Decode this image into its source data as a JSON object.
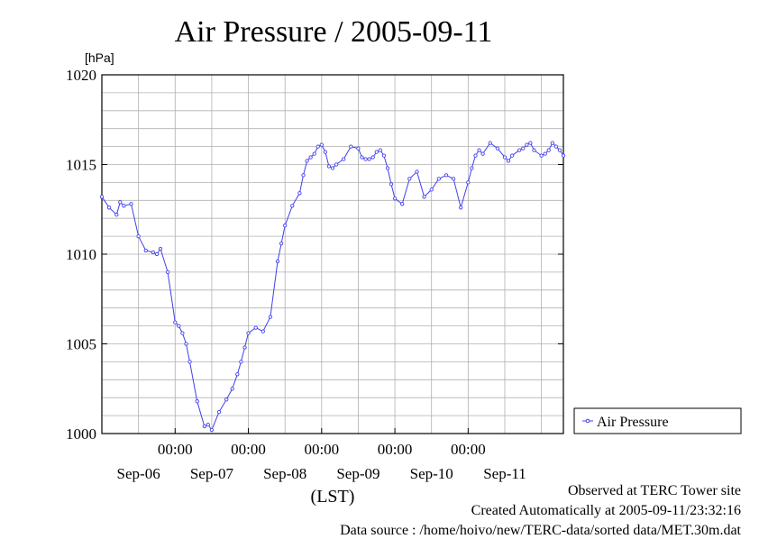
{
  "chart_data": {
    "type": "line",
    "title": "Air Pressure / 2005-09-11",
    "ylabel": "[hPa]",
    "xlabel": "(LST)",
    "ylim": [
      1000,
      1020
    ],
    "yticks": [
      "1000",
      "1005",
      "1010",
      "1015",
      "1020"
    ],
    "xlim_days": [
      0,
      6.3
    ],
    "x_time_ticks": [
      "00:00",
      "00:00",
      "00:00",
      "00:00",
      "00:00"
    ],
    "x_date_ticks": [
      "Sep-06",
      "Sep-07",
      "Sep-08",
      "Sep-09",
      "Sep-10",
      "Sep-11"
    ],
    "grid": true,
    "legend_position": "right",
    "series": [
      {
        "name": "Air Pressure",
        "color": "#4040ee",
        "x": [
          0.0,
          0.1,
          0.2,
          0.25,
          0.3,
          0.4,
          0.5,
          0.6,
          0.7,
          0.75,
          0.8,
          0.9,
          1.0,
          1.05,
          1.1,
          1.15,
          1.2,
          1.3,
          1.4,
          1.45,
          1.5,
          1.6,
          1.7,
          1.78,
          1.85,
          1.9,
          1.95,
          2.0,
          2.1,
          2.2,
          2.3,
          2.4,
          2.45,
          2.5,
          2.6,
          2.7,
          2.75,
          2.8,
          2.85,
          2.9,
          2.95,
          3.0,
          3.05,
          3.1,
          3.15,
          3.2,
          3.3,
          3.4,
          3.5,
          3.55,
          3.6,
          3.65,
          3.7,
          3.75,
          3.8,
          3.85,
          3.9,
          3.95,
          4.0,
          4.1,
          4.2,
          4.3,
          4.4,
          4.5,
          4.6,
          4.7,
          4.8,
          4.9,
          5.0,
          5.05,
          5.1,
          5.15,
          5.2,
          5.3,
          5.4,
          5.5,
          5.55,
          5.6,
          5.7,
          5.75,
          5.8,
          5.85,
          5.9,
          6.0,
          6.05,
          6.1,
          6.15,
          6.2,
          6.25,
          6.3
        ],
        "values": [
          1013.2,
          1012.6,
          1012.2,
          1012.9,
          1012.7,
          1012.8,
          1011.0,
          1010.2,
          1010.1,
          1010.0,
          1010.3,
          1009.0,
          1006.2,
          1006.0,
          1005.6,
          1005.0,
          1004.0,
          1001.8,
          1000.4,
          1000.5,
          1000.2,
          1001.2,
          1001.9,
          1002.5,
          1003.3,
          1004.0,
          1004.8,
          1005.6,
          1005.9,
          1005.7,
          1006.5,
          1009.6,
          1010.6,
          1011.6,
          1012.7,
          1013.4,
          1014.4,
          1015.2,
          1015.4,
          1015.6,
          1016.0,
          1016.1,
          1015.7,
          1014.9,
          1014.8,
          1015.0,
          1015.3,
          1016.0,
          1015.9,
          1015.4,
          1015.3,
          1015.3,
          1015.4,
          1015.7,
          1015.8,
          1015.5,
          1014.8,
          1013.9,
          1013.1,
          1012.8,
          1014.2,
          1014.6,
          1013.2,
          1013.6,
          1014.2,
          1014.4,
          1014.2,
          1012.6,
          1014.0,
          1014.8,
          1015.5,
          1015.8,
          1015.6,
          1016.2,
          1015.9,
          1015.4,
          1015.2,
          1015.5,
          1015.8,
          1015.9,
          1016.1,
          1016.2,
          1015.8,
          1015.5,
          1015.6,
          1015.8,
          1016.2,
          1016.0,
          1015.8,
          1015.5
        ]
      }
    ]
  },
  "footer": {
    "observed": "Observed at TERC Tower site",
    "created": "Created Automatically at 2005-09-11/23:32:16",
    "source": "Data source : /home/hoivo/new/TERC-data/sorted  data/MET.30m.dat"
  }
}
